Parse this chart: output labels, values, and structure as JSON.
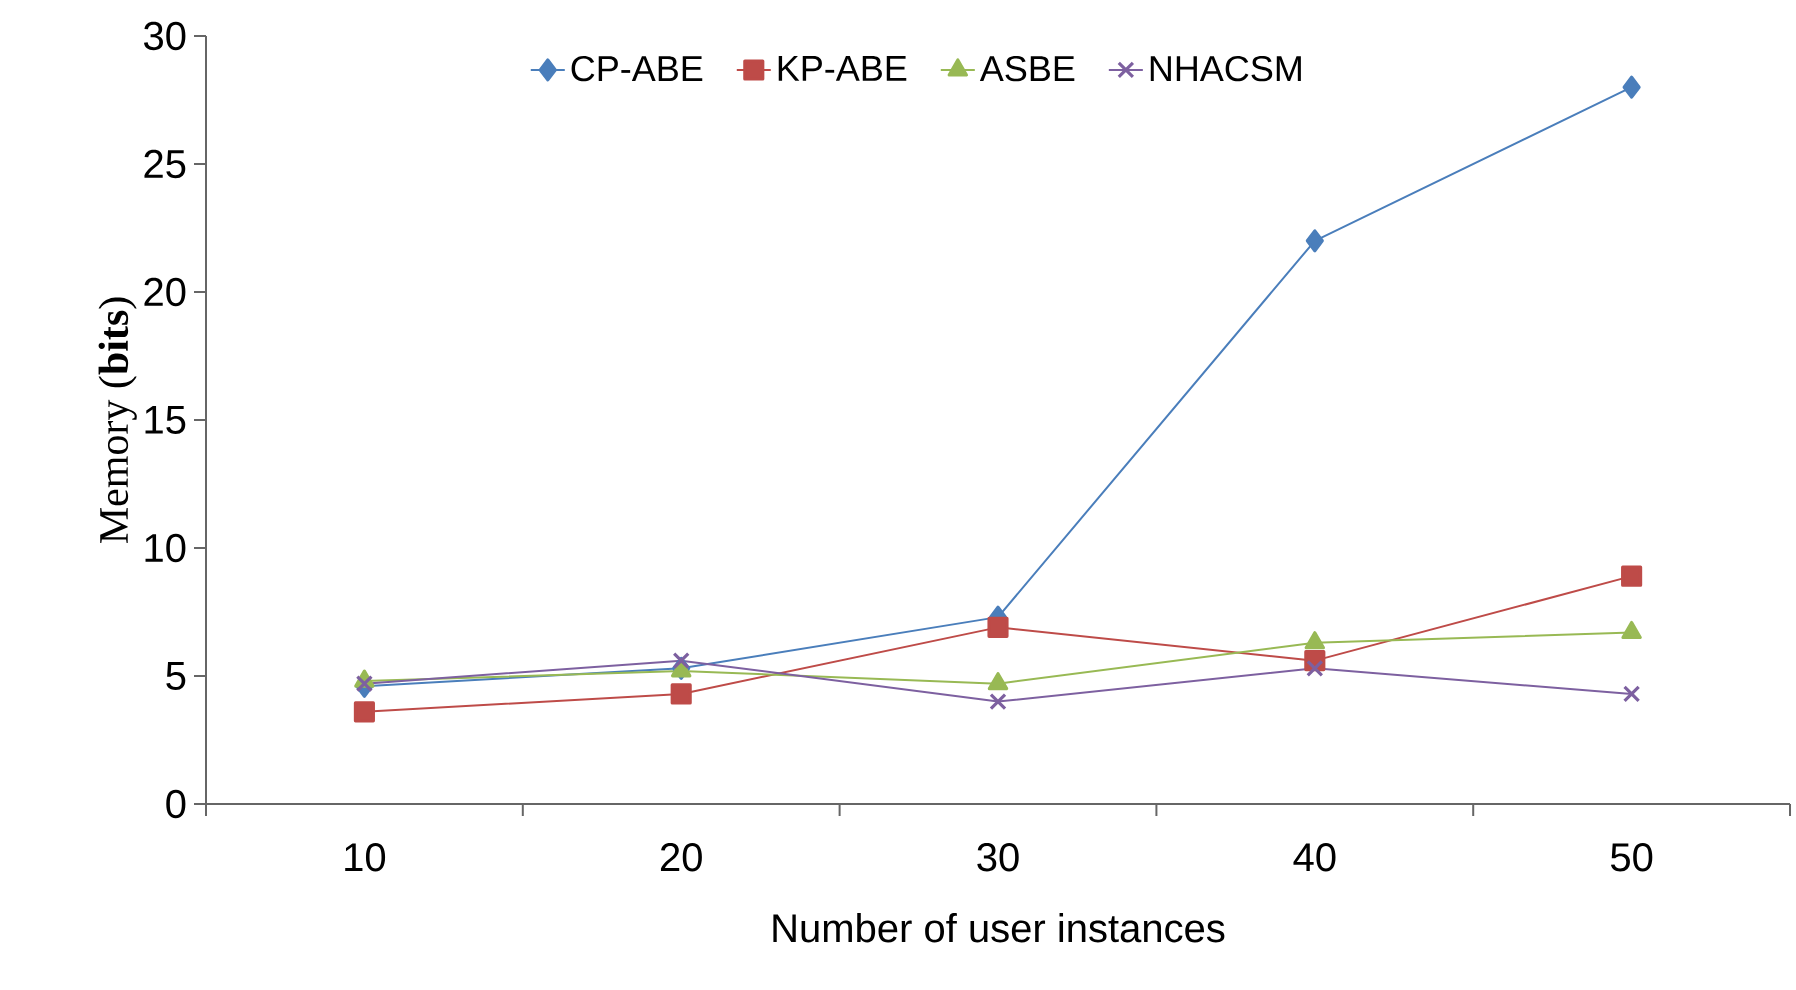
{
  "chart_data": {
    "type": "line",
    "xlabel": "Number of user instances",
    "ylabel": "Memory (**bits**)",
    "categories": [
      "10",
      "20",
      "30",
      "40",
      "50"
    ],
    "series": [
      {
        "name": "CP-ABE",
        "color": "#4a7ebb",
        "marker": "diamond",
        "values": [
          4.6,
          5.3,
          7.3,
          22,
          28
        ]
      },
      {
        "name": "KP-ABE",
        "color": "#be4b48",
        "marker": "square",
        "values": [
          3.6,
          4.3,
          6.9,
          5.6,
          8.9
        ]
      },
      {
        "name": "ASBE",
        "color": "#98b954",
        "marker": "triangle",
        "values": [
          4.8,
          5.2,
          4.7,
          6.3,
          6.7
        ]
      },
      {
        "name": "NHACSM",
        "color": "#7d60a0",
        "marker": "cross",
        "values": [
          4.7,
          5.6,
          4.0,
          5.3,
          4.3
        ]
      }
    ],
    "ylim": [
      0,
      30
    ],
    "yticks": [
      0,
      5,
      10,
      15,
      20,
      25,
      30
    ],
    "grid": false,
    "legend": "top"
  }
}
